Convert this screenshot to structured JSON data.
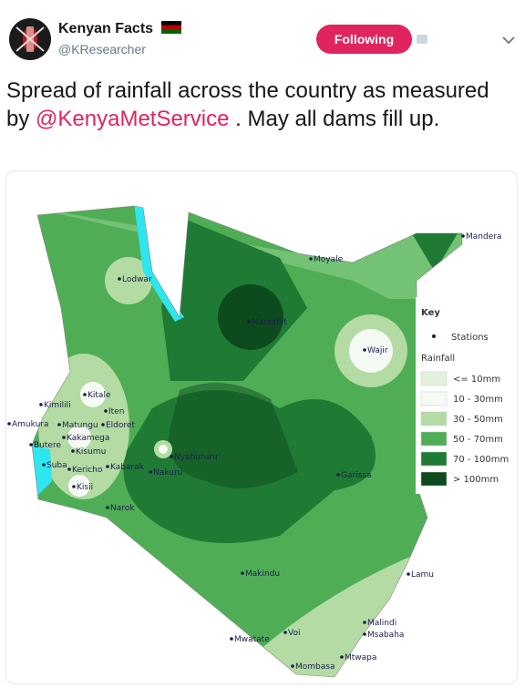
{
  "tweet": {
    "author": {
      "name": "Kenyan Facts",
      "handle": "@KResearcher"
    },
    "follow_button": "Following",
    "text": {
      "before": "Spread of rainfall across the country as measured by",
      "mention": "@KenyaMetService",
      "after": ". May all dams fill up."
    }
  },
  "map": {
    "stations": [
      "Mandera",
      "Moyale",
      "Lodwar",
      "Marsabit",
      "Wajir",
      "Kitale",
      "Iten",
      "Kimilili",
      "Amukura",
      "Matungu",
      "Eldoret",
      "Kakamega",
      "Butere",
      "Kisumu",
      "Suba",
      "Kericho",
      "Kabarak",
      "Kisii",
      "Nyahururu",
      "Nakuru",
      "Narok",
      "Garissa",
      "Makindu",
      "Lamu",
      "Malindi",
      "Msabaha",
      "Mwatate",
      "Voi",
      "Mombasa",
      "Mtwapa"
    ],
    "key": {
      "title": "Key",
      "stations_label": "Stations",
      "rainfall_label": "Rainfall",
      "classes": [
        {
          "label": "<= 10mm",
          "color": "#e3f1dc"
        },
        {
          "label": "10 - 30mm",
          "color": "#f6faf4"
        },
        {
          "label": "30 - 50mm",
          "color": "#b3dba3"
        },
        {
          "label": "50 - 70mm",
          "color": "#4fae55"
        },
        {
          "label": "70 - 100mm",
          "color": "#1f7a34"
        },
        {
          "label": "> 100mm",
          "color": "#0d4a1d"
        }
      ]
    }
  }
}
